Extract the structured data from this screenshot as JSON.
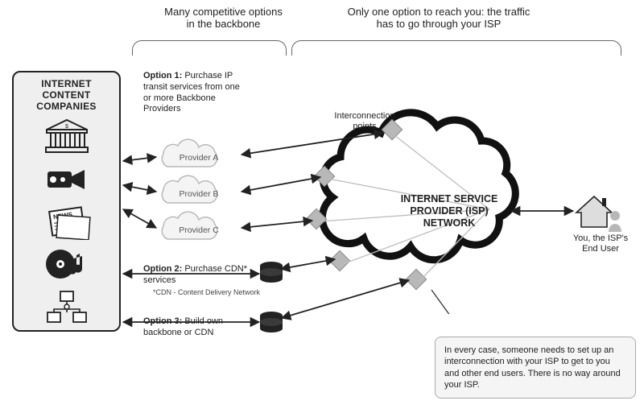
{
  "header_left": "Many competitive options\nin the backbone",
  "header_right": "Only one option to reach you: the traffic\nhas to go through your ISP",
  "left_title": "INTERNET CONTENT\nCOMPANIES",
  "option1": "Option 1: Purchase IP transit services from one or more Backbone Providers",
  "option1_label": "Option 1:",
  "option1_body": "Purchase IP transit services from one or more Backbone Providers",
  "providerA": "Provider A",
  "providerB": "Provider B",
  "providerC": "Provider C",
  "option2_label": "Option 2:",
  "option2_body": "Purchase CDN* services",
  "cdn_footnote": "*CDN - Content Delivery Network",
  "option3_label": "Option 3:",
  "option3_body": "Build own backbone or CDN",
  "interconnection": "Interconnection\npoints",
  "isp_label": "INTERNET SERVICE\nPROVIDER (ISP)\nNETWORK",
  "end_user": "You, the ISP's\nEnd User",
  "note": "In every case, someone needs to set up an interconnection with your ISP to get to you and other end users. There is no way around your ISP.",
  "colors": {
    "gray": "#888",
    "dark": "#222",
    "light": "#efefef",
    "mid": "#b8b8b8"
  }
}
